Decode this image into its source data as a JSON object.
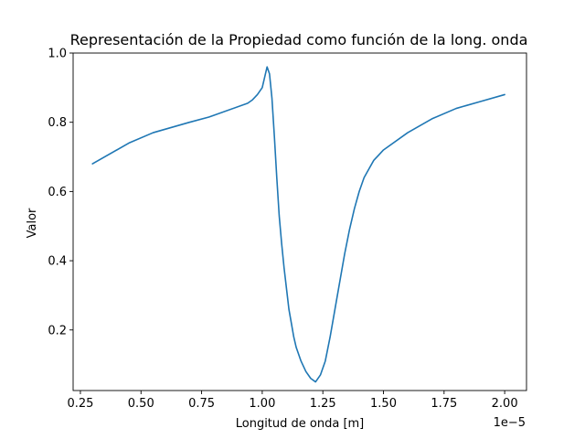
{
  "chart_data": {
    "type": "line",
    "title": "Representación de la Propiedad como función de la long. onda",
    "xlabel": "Longitud de onda [m]",
    "ylabel": "Valor",
    "x_offset_label": "1e−5",
    "xlim": [
      0.22,
      2.09
    ],
    "ylim": [
      0.025,
      1.0
    ],
    "x_ticks": [
      0.25,
      0.5,
      0.75,
      1.0,
      1.25,
      1.5,
      1.75,
      2.0
    ],
    "x_tick_labels": [
      "0.25",
      "0.50",
      "0.75",
      "1.00",
      "1.25",
      "1.50",
      "1.75",
      "2.00"
    ],
    "y_ticks": [
      0.2,
      0.4,
      0.6,
      0.8,
      1.0
    ],
    "y_tick_labels": [
      "0.2",
      "0.4",
      "0.6",
      "0.8",
      "1.0"
    ],
    "grid": false,
    "series": [
      {
        "color": "#1f77b4",
        "x": [
          0.3,
          0.45,
          0.55,
          0.7,
          0.78,
          0.8,
          0.94,
          0.96,
          0.98,
          1.0,
          1.01,
          1.02,
          1.03,
          1.04,
          1.05,
          1.06,
          1.07,
          1.08,
          1.09,
          1.1,
          1.11,
          1.12,
          1.13,
          1.14,
          1.16,
          1.18,
          1.2,
          1.22,
          1.24,
          1.26,
          1.28,
          1.3,
          1.32,
          1.34,
          1.36,
          1.38,
          1.4,
          1.42,
          1.44,
          1.46,
          1.48,
          1.5,
          1.6,
          1.7,
          1.8,
          1.9,
          2.0
        ],
        "y": [
          0.68,
          0.74,
          0.77,
          0.8,
          0.815,
          0.82,
          0.855,
          0.865,
          0.88,
          0.9,
          0.93,
          0.96,
          0.94,
          0.87,
          0.76,
          0.64,
          0.53,
          0.45,
          0.38,
          0.32,
          0.26,
          0.22,
          0.18,
          0.15,
          0.11,
          0.08,
          0.06,
          0.05,
          0.07,
          0.11,
          0.18,
          0.26,
          0.34,
          0.42,
          0.49,
          0.55,
          0.6,
          0.64,
          0.665,
          0.69,
          0.705,
          0.72,
          0.77,
          0.81,
          0.84,
          0.86,
          0.88
        ]
      }
    ]
  }
}
